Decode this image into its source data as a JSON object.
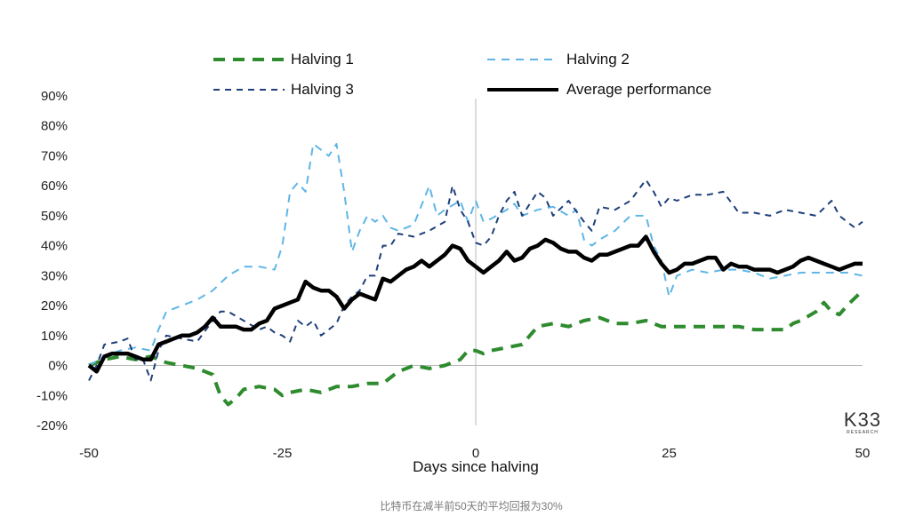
{
  "chart_data": {
    "type": "line",
    "title": "",
    "xlabel": "Days since halving",
    "ylabel": "",
    "xlim": [
      -50,
      50
    ],
    "ylim": [
      -20,
      90
    ],
    "x_ticks": [
      -50,
      -25,
      0,
      25,
      50
    ],
    "x_tick_labels": [
      "-50",
      "-25",
      "0",
      "25",
      "50"
    ],
    "y_ticks": [
      -20,
      -10,
      0,
      10,
      20,
      30,
      40,
      50,
      60,
      70,
      80,
      90
    ],
    "y_tick_labels": [
      "-20%",
      "-10%",
      "0%",
      "10%",
      "20%",
      "30%",
      "40%",
      "50%",
      "60%",
      "70%",
      "80%",
      "90%"
    ],
    "grid": false,
    "legend_position": "top",
    "series": [
      {
        "name": "Halving 1",
        "color": "#2e8b2e",
        "dash": "long",
        "points": [
          [
            -50,
            0
          ],
          [
            -48,
            2
          ],
          [
            -46,
            3
          ],
          [
            -44,
            2
          ],
          [
            -42,
            3
          ],
          [
            -40,
            1
          ],
          [
            -38,
            0
          ],
          [
            -36,
            -1
          ],
          [
            -34,
            -3
          ],
          [
            -33,
            -10
          ],
          [
            -32,
            -13
          ],
          [
            -31,
            -11
          ],
          [
            -30,
            -8
          ],
          [
            -28,
            -7
          ],
          [
            -26,
            -8
          ],
          [
            -25,
            -10
          ],
          [
            -24,
            -9
          ],
          [
            -22,
            -8
          ],
          [
            -20,
            -9
          ],
          [
            -18,
            -7
          ],
          [
            -16,
            -7
          ],
          [
            -14,
            -6
          ],
          [
            -12,
            -6
          ],
          [
            -11,
            -4
          ],
          [
            -10,
            -2
          ],
          [
            -8,
            0
          ],
          [
            -6,
            -1
          ],
          [
            -4,
            0
          ],
          [
            -2,
            2
          ],
          [
            -1,
            5
          ],
          [
            0,
            5
          ],
          [
            1,
            4
          ],
          [
            2,
            5
          ],
          [
            4,
            6
          ],
          [
            6,
            7
          ],
          [
            7,
            10
          ],
          [
            8,
            13
          ],
          [
            10,
            14
          ],
          [
            12,
            13
          ],
          [
            14,
            15
          ],
          [
            16,
            16
          ],
          [
            18,
            14
          ],
          [
            20,
            14
          ],
          [
            22,
            15
          ],
          [
            24,
            13
          ],
          [
            26,
            13
          ],
          [
            28,
            13
          ],
          [
            30,
            13
          ],
          [
            32,
            13
          ],
          [
            34,
            13
          ],
          [
            36,
            12
          ],
          [
            38,
            12
          ],
          [
            40,
            12
          ],
          [
            41,
            14
          ],
          [
            42,
            15
          ],
          [
            44,
            18
          ],
          [
            45,
            21
          ],
          [
            46,
            18
          ],
          [
            47,
            17
          ],
          [
            48,
            20
          ],
          [
            50,
            25
          ]
        ]
      },
      {
        "name": "Halving 2",
        "color": "#5eb6e6",
        "dash": "medium",
        "points": [
          [
            -50,
            0
          ],
          [
            -48,
            3
          ],
          [
            -46,
            5
          ],
          [
            -44,
            6
          ],
          [
            -42,
            5
          ],
          [
            -41,
            12
          ],
          [
            -40,
            18
          ],
          [
            -38,
            20
          ],
          [
            -36,
            22
          ],
          [
            -34,
            25
          ],
          [
            -32,
            30
          ],
          [
            -30,
            33
          ],
          [
            -28,
            33
          ],
          [
            -26,
            32
          ],
          [
            -25,
            40
          ],
          [
            -24,
            58
          ],
          [
            -23,
            61
          ],
          [
            -22,
            58
          ],
          [
            -21,
            74
          ],
          [
            -20,
            72
          ],
          [
            -19,
            70
          ],
          [
            -18,
            74
          ],
          [
            -17,
            58
          ],
          [
            -16,
            38
          ],
          [
            -15,
            45
          ],
          [
            -14,
            50
          ],
          [
            -13,
            48
          ],
          [
            -12,
            50
          ],
          [
            -11,
            46
          ],
          [
            -10,
            45
          ],
          [
            -8,
            47
          ],
          [
            -6,
            60
          ],
          [
            -5,
            50
          ],
          [
            -4,
            52
          ],
          [
            -2,
            55
          ],
          [
            -1,
            48
          ],
          [
            0,
            55
          ],
          [
            1,
            48
          ],
          [
            2,
            49
          ],
          [
            4,
            52
          ],
          [
            5,
            54
          ],
          [
            6,
            50
          ],
          [
            8,
            52
          ],
          [
            10,
            53
          ],
          [
            12,
            50
          ],
          [
            13,
            52
          ],
          [
            14,
            42
          ],
          [
            15,
            40
          ],
          [
            16,
            42
          ],
          [
            18,
            45
          ],
          [
            20,
            50
          ],
          [
            22,
            50
          ],
          [
            23,
            40
          ],
          [
            24,
            35
          ],
          [
            25,
            23
          ],
          [
            26,
            30
          ],
          [
            28,
            32
          ],
          [
            30,
            31
          ],
          [
            32,
            32
          ],
          [
            34,
            32
          ],
          [
            36,
            31
          ],
          [
            38,
            29
          ],
          [
            40,
            30
          ],
          [
            42,
            31
          ],
          [
            44,
            31
          ],
          [
            46,
            31
          ],
          [
            48,
            31
          ],
          [
            50,
            30
          ]
        ]
      },
      {
        "name": "Halving 3",
        "color": "#1e3f7a",
        "dash": "short",
        "points": [
          [
            -50,
            -5
          ],
          [
            -49,
            0
          ],
          [
            -48,
            7
          ],
          [
            -46,
            8
          ],
          [
            -45,
            9
          ],
          [
            -44,
            2
          ],
          [
            -43,
            2
          ],
          [
            -42,
            -5
          ],
          [
            -41,
            5
          ],
          [
            -40,
            10
          ],
          [
            -38,
            9
          ],
          [
            -36,
            8
          ],
          [
            -34,
            15
          ],
          [
            -33,
            18
          ],
          [
            -32,
            18
          ],
          [
            -30,
            15
          ],
          [
            -28,
            12
          ],
          [
            -27,
            13
          ],
          [
            -26,
            11
          ],
          [
            -25,
            10
          ],
          [
            -24,
            8
          ],
          [
            -23,
            15
          ],
          [
            -22,
            13
          ],
          [
            -21,
            15
          ],
          [
            -20,
            10
          ],
          [
            -19,
            12
          ],
          [
            -18,
            14
          ],
          [
            -17,
            20
          ],
          [
            -16,
            23
          ],
          [
            -15,
            25
          ],
          [
            -14,
            30
          ],
          [
            -13,
            30
          ],
          [
            -12,
            40
          ],
          [
            -11,
            40
          ],
          [
            -10,
            44
          ],
          [
            -8,
            43
          ],
          [
            -6,
            45
          ],
          [
            -4,
            48
          ],
          [
            -3,
            60
          ],
          [
            -2,
            52
          ],
          [
            -1,
            48
          ],
          [
            0,
            41
          ],
          [
            1,
            40
          ],
          [
            2,
            43
          ],
          [
            3,
            50
          ],
          [
            4,
            55
          ],
          [
            5,
            58
          ],
          [
            6,
            50
          ],
          [
            8,
            58
          ],
          [
            9,
            56
          ],
          [
            10,
            50
          ],
          [
            12,
            55
          ],
          [
            14,
            48
          ],
          [
            15,
            45
          ],
          [
            16,
            53
          ],
          [
            18,
            52
          ],
          [
            20,
            55
          ],
          [
            22,
            62
          ],
          [
            23,
            58
          ],
          [
            24,
            53
          ],
          [
            25,
            56
          ],
          [
            26,
            55
          ],
          [
            28,
            57
          ],
          [
            30,
            57
          ],
          [
            32,
            58
          ],
          [
            34,
            51
          ],
          [
            36,
            51
          ],
          [
            38,
            50
          ],
          [
            40,
            52
          ],
          [
            42,
            51
          ],
          [
            44,
            50
          ],
          [
            46,
            55
          ],
          [
            47,
            50
          ],
          [
            48,
            48
          ],
          [
            49,
            46
          ],
          [
            50,
            48
          ]
        ]
      },
      {
        "name": "Average performance",
        "color": "#000000",
        "dash": "solid",
        "points": [
          [
            -50,
            0
          ],
          [
            -49,
            -2
          ],
          [
            -48,
            3
          ],
          [
            -47,
            4
          ],
          [
            -46,
            4
          ],
          [
            -45,
            4
          ],
          [
            -44,
            3
          ],
          [
            -43,
            2
          ],
          [
            -42,
            2
          ],
          [
            -41,
            7
          ],
          [
            -40,
            8
          ],
          [
            -39,
            9
          ],
          [
            -38,
            10
          ],
          [
            -37,
            10
          ],
          [
            -36,
            11
          ],
          [
            -35,
            13
          ],
          [
            -34,
            16
          ],
          [
            -33,
            13
          ],
          [
            -32,
            13
          ],
          [
            -31,
            13
          ],
          [
            -30,
            12
          ],
          [
            -29,
            12
          ],
          [
            -28,
            14
          ],
          [
            -27,
            15
          ],
          [
            -26,
            19
          ],
          [
            -25,
            20
          ],
          [
            -24,
            21
          ],
          [
            -23,
            22
          ],
          [
            -22,
            28
          ],
          [
            -21,
            26
          ],
          [
            -20,
            25
          ],
          [
            -19,
            25
          ],
          [
            -18,
            23
          ],
          [
            -17,
            19
          ],
          [
            -16,
            22
          ],
          [
            -15,
            24
          ],
          [
            -14,
            23
          ],
          [
            -13,
            22
          ],
          [
            -12,
            29
          ],
          [
            -11,
            28
          ],
          [
            -10,
            30
          ],
          [
            -9,
            32
          ],
          [
            -8,
            33
          ],
          [
            -7,
            35
          ],
          [
            -6,
            33
          ],
          [
            -5,
            35
          ],
          [
            -4,
            37
          ],
          [
            -3,
            40
          ],
          [
            -2,
            39
          ],
          [
            -1,
            35
          ],
          [
            0,
            33
          ],
          [
            1,
            31
          ],
          [
            2,
            33
          ],
          [
            3,
            35
          ],
          [
            4,
            38
          ],
          [
            5,
            35
          ],
          [
            6,
            36
          ],
          [
            7,
            39
          ],
          [
            8,
            40
          ],
          [
            9,
            42
          ],
          [
            10,
            41
          ],
          [
            11,
            39
          ],
          [
            12,
            38
          ],
          [
            13,
            38
          ],
          [
            14,
            36
          ],
          [
            15,
            35
          ],
          [
            16,
            37
          ],
          [
            17,
            37
          ],
          [
            18,
            38
          ],
          [
            19,
            39
          ],
          [
            20,
            40
          ],
          [
            21,
            40
          ],
          [
            22,
            43
          ],
          [
            23,
            38
          ],
          [
            24,
            34
          ],
          [
            25,
            31
          ],
          [
            26,
            32
          ],
          [
            27,
            34
          ],
          [
            28,
            34
          ],
          [
            29,
            35
          ],
          [
            30,
            36
          ],
          [
            31,
            36
          ],
          [
            32,
            32
          ],
          [
            33,
            34
          ],
          [
            34,
            33
          ],
          [
            35,
            33
          ],
          [
            36,
            32
          ],
          [
            37,
            32
          ],
          [
            38,
            32
          ],
          [
            39,
            31
          ],
          [
            40,
            32
          ],
          [
            41,
            33
          ],
          [
            42,
            35
          ],
          [
            43,
            36
          ],
          [
            44,
            35
          ],
          [
            45,
            34
          ],
          [
            46,
            33
          ],
          [
            47,
            32
          ],
          [
            48,
            33
          ],
          [
            49,
            34
          ],
          [
            50,
            34
          ]
        ]
      }
    ]
  },
  "legend": [
    {
      "label": "Halving 1"
    },
    {
      "label": "Halving 2"
    },
    {
      "label": "Halving 3"
    },
    {
      "label": "Average performance"
    }
  ],
  "brand": {
    "name": "K33",
    "sub": "RESEARCH"
  },
  "caption": "比特币在减半前50天的平均回报为30%"
}
